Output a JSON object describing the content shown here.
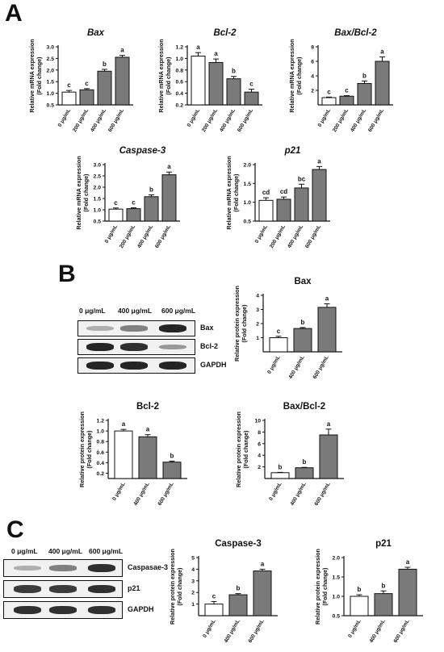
{
  "panels": {
    "a": "A",
    "b": "B",
    "c": "C"
  },
  "charts_a_axis_label": [
    "Relative mRNA expression",
    "(Fold change)"
  ],
  "charts_bc_axis_label": [
    "Relative protein expression",
    "(Fold change)"
  ],
  "chart_data": [
    {
      "id": "a-bax",
      "type": "bar",
      "title": "Bax",
      "title_style": "italic",
      "categories": [
        "0 μg/mL",
        "200 μg/mL",
        "400 μg/mL",
        "600 μg/mL"
      ],
      "values": [
        1.05,
        1.15,
        1.95,
        2.55
      ],
      "errors": [
        0.07,
        0.05,
        0.08,
        0.08
      ],
      "letters": [
        "c",
        "c",
        "b",
        "a"
      ],
      "ylim": [
        0.5,
        3.0
      ],
      "yticks": [
        "0.5",
        "1.0",
        "1.5",
        "2.0",
        "2.5",
        "3.0"
      ],
      "ylabel": [
        "Relative mRNA expression",
        "(Fold change)"
      ]
    },
    {
      "id": "a-bcl2",
      "type": "bar",
      "title": "Bcl-2",
      "title_style": "italic",
      "categories": [
        "0 μg/mL",
        "200 μg/mL",
        "400 μg/mL",
        "600 μg/mL"
      ],
      "values": [
        1.04,
        0.93,
        0.65,
        0.42
      ],
      "errors": [
        0.06,
        0.06,
        0.04,
        0.05
      ],
      "letters": [
        "a",
        "a",
        "b",
        "c"
      ],
      "ylim": [
        0.2,
        1.2
      ],
      "yticks": [
        "0.2",
        "0.4",
        "0.6",
        "0.8",
        "1.0",
        "1.2"
      ],
      "ylabel": [
        "Relative mRNA expression",
        "(Fold change)"
      ]
    },
    {
      "id": "a-baxbcl2",
      "type": "bar",
      "title": "Bax/Bcl-2",
      "title_style": "italic",
      "categories": [
        "0 μg/mL",
        "200 μg/mL",
        "400 μg/mL",
        "600 μg/mL"
      ],
      "values": [
        1.0,
        1.2,
        2.95,
        6.0
      ],
      "errors": [
        0.08,
        0.08,
        0.35,
        0.6
      ],
      "letters": [
        "c",
        "c",
        "b",
        "a"
      ],
      "ylim": [
        0,
        8
      ],
      "yticks": [
        "2",
        "4",
        "6",
        "8"
      ],
      "ylabel": [
        "Relative mRNA expression",
        "(Fold change)"
      ]
    },
    {
      "id": "a-casp3",
      "type": "bar",
      "title": "Caspase-3",
      "title_style": "italic",
      "categories": [
        "0 μg/mL",
        "200 μg/mL",
        "400 μg/mL",
        "600 μg/mL"
      ],
      "values": [
        1.03,
        1.05,
        1.58,
        2.55
      ],
      "errors": [
        0.05,
        0.04,
        0.08,
        0.12
      ],
      "letters": [
        "c",
        "c",
        "b",
        "a"
      ],
      "ylim": [
        0.5,
        3.0
      ],
      "yticks": [
        "0.5",
        "1.0",
        "1.5",
        "2.0",
        "2.5",
        "3.0"
      ],
      "ylabel": [
        "Relative mRNA expression",
        "(Fold change)"
      ]
    },
    {
      "id": "a-p21",
      "type": "bar",
      "title": "p21",
      "title_style": "italic",
      "categories": [
        "0 μg/mL",
        "200 μg/mL",
        "400 μg/mL",
        "600 μg/mL"
      ],
      "values": [
        1.05,
        1.08,
        1.38,
        1.87
      ],
      "errors": [
        0.07,
        0.06,
        0.1,
        0.08
      ],
      "letters": [
        "cd",
        "cd",
        "bc",
        "a"
      ],
      "ylim": [
        0.5,
        2.0
      ],
      "yticks": [
        "0.5",
        "1.0",
        "1.5",
        "2.0"
      ],
      "ylabel": [
        "Relative mRNA expression",
        "(Fold change)"
      ]
    },
    {
      "id": "b-bax",
      "type": "bar",
      "title": "Bax",
      "title_style": "normal",
      "categories": [
        "0 μg/mL",
        "400 μg/mL",
        "600 μg/mL"
      ],
      "values": [
        1.0,
        1.65,
        3.15
      ],
      "errors": [
        0.1,
        0.07,
        0.25
      ],
      "letters": [
        "c",
        "b",
        "a"
      ],
      "ylim": [
        0,
        4
      ],
      "yticks": [
        "1",
        "2",
        "3",
        "4"
      ],
      "ylabel": [
        "Relative protein expression",
        "(Fold change)"
      ]
    },
    {
      "id": "b-bcl2",
      "type": "bar",
      "title": "Bcl-2",
      "title_style": "normal",
      "categories": [
        "0 μg/mL",
        "400 μg/mL",
        "600 μg/mL"
      ],
      "values": [
        1.0,
        0.89,
        0.41
      ],
      "errors": [
        0.03,
        0.04,
        0.02
      ],
      "letters": [
        "a",
        "a",
        "b"
      ],
      "ylim": [
        0.1,
        1.2
      ],
      "yticks": [
        "0.2",
        "0.4",
        "0.6",
        "0.8",
        "1.0",
        "1.2"
      ],
      "ylabel": [
        "Relative protein expression",
        "(Fold change)"
      ]
    },
    {
      "id": "b-baxbcl2",
      "type": "bar",
      "title": "Bax/Bcl-2",
      "title_style": "normal",
      "categories": [
        "0 μg/mL",
        "400 μg/mL",
        "600 μg/mL"
      ],
      "values": [
        1.0,
        1.85,
        7.5
      ],
      "errors": [
        0.06,
        0.07,
        1.0
      ],
      "letters": [
        "b",
        "b",
        "a"
      ],
      "ylim": [
        0,
        10
      ],
      "yticks": [
        "2",
        "4",
        "6",
        "8",
        "10"
      ],
      "ylabel": [
        "Relative protein expression",
        "(Fold change)"
      ]
    },
    {
      "id": "c-casp3",
      "type": "bar",
      "title": "Caspase-3",
      "title_style": "normal",
      "categories": [
        "0 μg/mL",
        "400 μg/mL",
        "600 μg/mL"
      ],
      "values": [
        1.0,
        1.8,
        3.85
      ],
      "errors": [
        0.22,
        0.1,
        0.15
      ],
      "letters": [
        "c",
        "b",
        "a"
      ],
      "ylim": [
        0,
        5
      ],
      "yticks": [
        "1",
        "2",
        "3",
        "4",
        "5"
      ],
      "ylabel": [
        "Relative protein expression",
        "(Fold change)"
      ]
    },
    {
      "id": "c-p21",
      "type": "bar",
      "title": "p21",
      "title_style": "normal",
      "categories": [
        "0 μg/mL",
        "400 μg/mL",
        "600 μg/mL"
      ],
      "values": [
        1.0,
        1.07,
        1.7
      ],
      "errors": [
        0.04,
        0.07,
        0.05
      ],
      "letters": [
        "b",
        "b",
        "a"
      ],
      "ylim": [
        0.5,
        2.0
      ],
      "yticks": [
        "0.5",
        "1.0",
        "1.5",
        "2.0"
      ],
      "ylabel": [
        "Relative protein expression",
        "(Fold change)"
      ]
    }
  ],
  "blots": {
    "b": {
      "lanes": [
        "0 μg/mL",
        "400 μg/mL",
        "600 μg/mL"
      ],
      "rows": [
        {
          "label": "Bax",
          "intensity": [
            0.35,
            0.55,
            0.95
          ]
        },
        {
          "label": "Bcl-2",
          "intensity": [
            0.95,
            0.9,
            0.45
          ]
        },
        {
          "label": "GAPDH",
          "intensity": [
            0.95,
            0.95,
            0.95
          ]
        }
      ]
    },
    "c": {
      "lanes": [
        "0 μg/mL",
        "400 μg/mL",
        "600 μg/mL"
      ],
      "rows": [
        {
          "label": "Caspasae-3",
          "intensity": [
            0.35,
            0.55,
            0.9
          ]
        },
        {
          "label": "p21",
          "intensity": [
            0.85,
            0.85,
            0.9
          ]
        },
        {
          "label": "GAPDH",
          "intensity": [
            0.9,
            0.9,
            0.9
          ]
        }
      ]
    }
  },
  "colors": {
    "bar_first": "#ffffff",
    "bar_fill": "#7a7a7a",
    "stroke": "#111111"
  }
}
